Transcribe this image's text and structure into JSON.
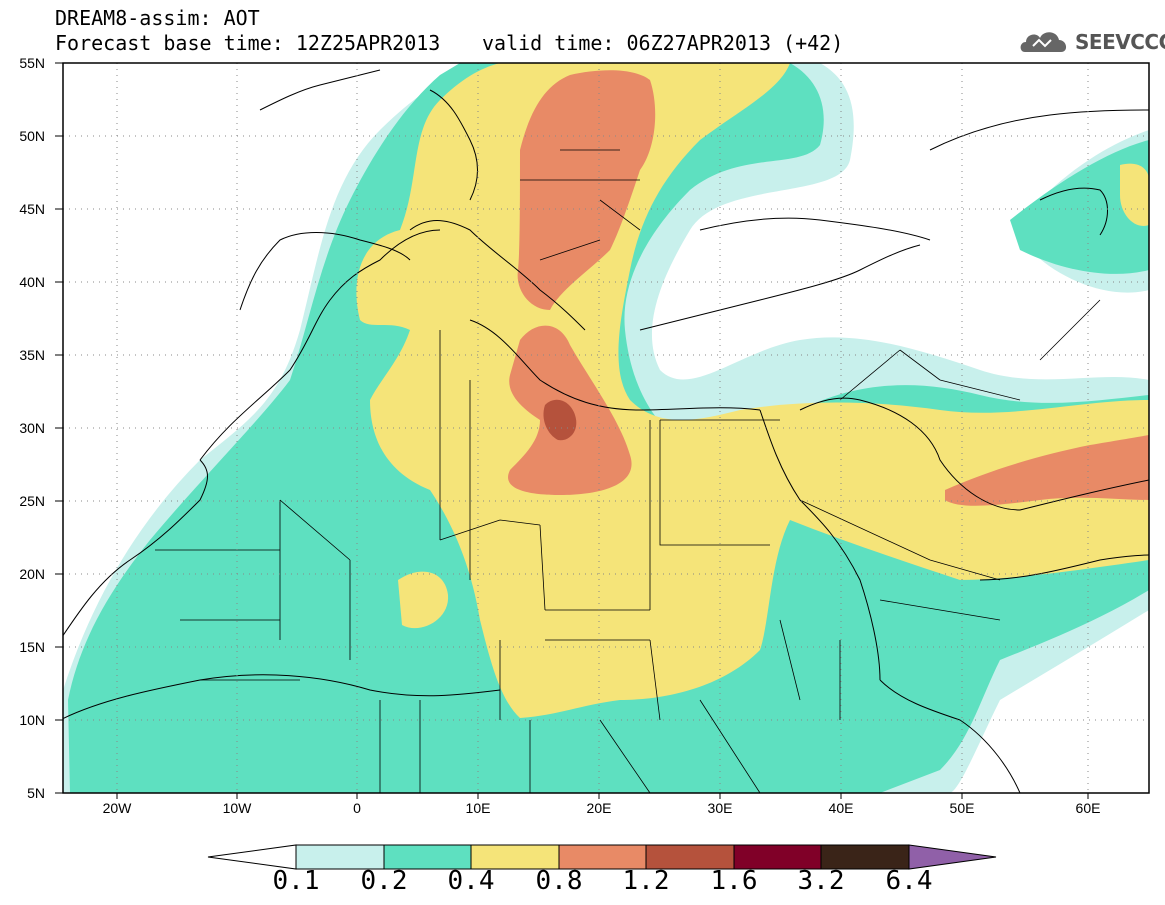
{
  "title": {
    "line1": "DREAM8-assim: AOT",
    "line2": "Forecast base time: 12Z25APR2013",
    "valid": "valid time: 06Z27APR2013 (+42)"
  },
  "logo": {
    "text": "SEEVCCC",
    "icon": "cloud-icon"
  },
  "map": {
    "lat_labels": [
      "55N",
      "50N",
      "45N",
      "40N",
      "35N",
      "30N",
      "25N",
      "20N",
      "15N",
      "10N",
      "5N"
    ],
    "lon_labels": [
      "20W",
      "10W",
      "0",
      "10E",
      "20E",
      "30E",
      "40E",
      "50E",
      "60E"
    ],
    "grid": "dotted"
  },
  "colorbar": {
    "levels": [
      "0.1",
      "0.2",
      "0.4",
      "0.8",
      "1.2",
      "1.6",
      "3.2",
      "6.4"
    ],
    "colors": [
      "#ffffff",
      "#c8f0ec",
      "#5ee0c0",
      "#f5e479",
      "#e88a66",
      "#b5523c",
      "#800028",
      "#3a2418",
      "#9060a8"
    ]
  }
}
